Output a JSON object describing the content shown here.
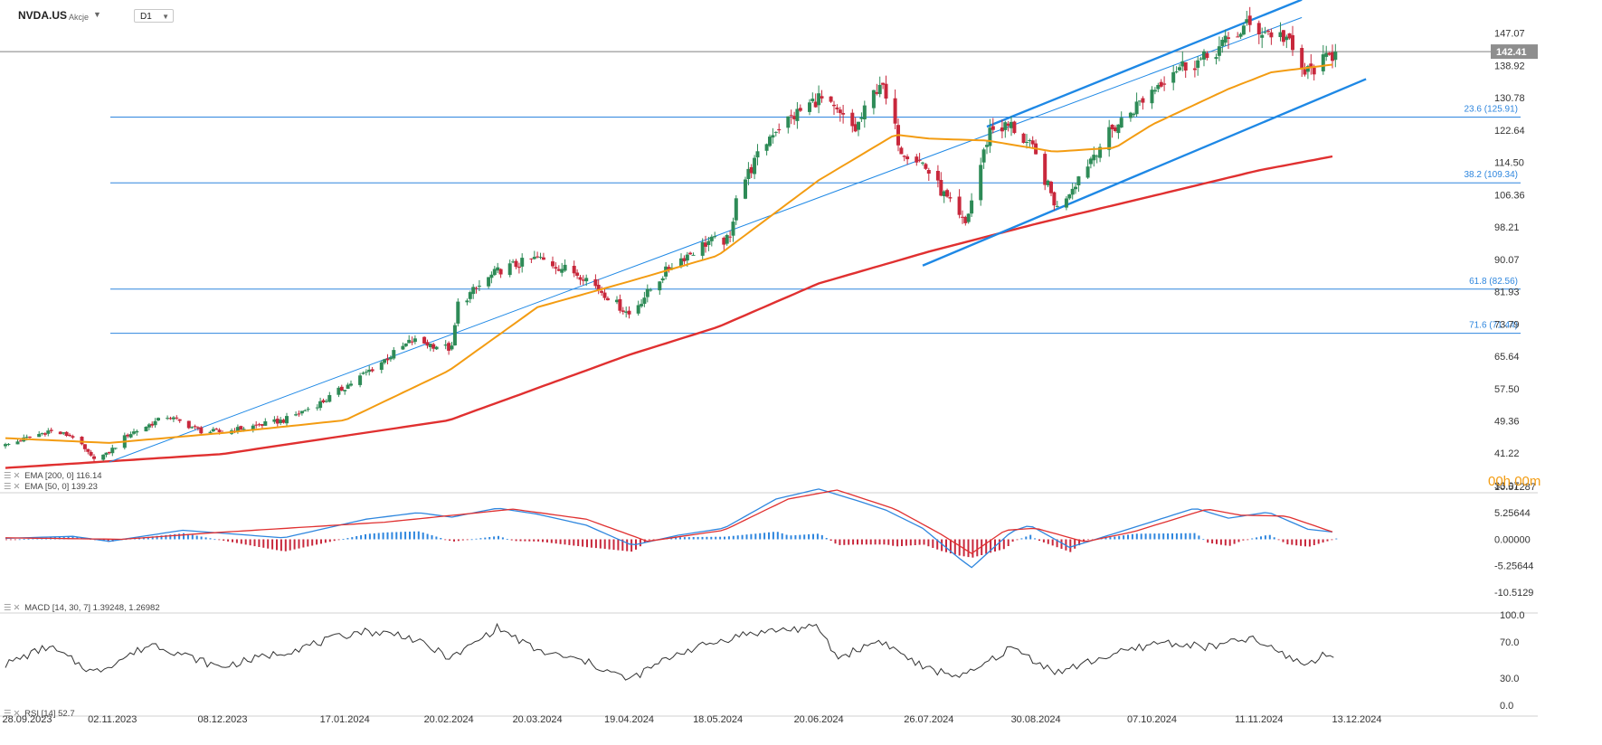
{
  "header": {
    "symbol": "NVDA.US",
    "instrument_type": "Akcje",
    "timeframe": "D1"
  },
  "timer": "00h 00m",
  "indicators": {
    "ema200": {
      "label": "EMA [200, 0]",
      "value": "116.14"
    },
    "ema50": {
      "label": "EMA [50, 0]",
      "value": "139.23"
    },
    "macd": {
      "label": "MACD [14, 30, 7]",
      "value": "1.39248,",
      "value2": "1.26982"
    },
    "rsi": {
      "label": "RSI [14]",
      "value": "52.7"
    }
  },
  "icons": [
    "settings-icon",
    "close-icon",
    "dropdown-caret-icon"
  ],
  "colors": {
    "bull": "#2e8b57",
    "bear": "#c8283c",
    "ema50": "#f39c12",
    "ema200": "#e03030",
    "trend": "#1e88e5",
    "fib": "#2e86de",
    "macd_line": "#2e86de",
    "signal_line": "#e03030",
    "rsi": "#333333"
  },
  "chart_data": {
    "type": "candlestick",
    "last_price": "142.41",
    "price_axis": [
      "147.07",
      "138.92",
      "130.78",
      "122.64",
      "114.50",
      "106.36",
      "98.21",
      "90.07",
      "81.93",
      "73.79",
      "65.64",
      "57.50",
      "49.36",
      "41.22",
      "33.07"
    ],
    "price_range": [
      33.07,
      152
    ],
    "time_axis": [
      "28.09.2023",
      "02.11.2023",
      "08.12.2023",
      "17.01.2024",
      "20.02.2024",
      "20.03.2024",
      "19.04.2024",
      "18.05.2024",
      "20.06.2024",
      "26.07.2024",
      "30.08.2024",
      "07.10.2024",
      "11.11.2024",
      "13.12.2024"
    ],
    "fib_levels": [
      {
        "label": "23.6 (125.91)",
        "value": 125.91
      },
      {
        "label": "38.2 (109.34)",
        "value": 109.34
      },
      {
        "label": "61.8 (82.56)",
        "value": 82.56
      },
      {
        "label": "71.6 (71.44)",
        "value": 71.44
      }
    ],
    "price_anchors": [
      [
        "2023-09-28",
        43.2
      ],
      [
        "2023-10-12",
        46.8
      ],
      [
        "2023-10-20",
        45.5
      ],
      [
        "2023-10-26",
        40.2
      ],
      [
        "2023-10-31",
        40.8
      ],
      [
        "2023-11-07",
        45.9
      ],
      [
        "2023-11-20",
        50.5
      ],
      [
        "2023-12-01",
        46.8
      ],
      [
        "2023-12-08",
        46.5
      ],
      [
        "2023-12-28",
        49.5
      ],
      [
        "2024-01-10",
        54.3
      ],
      [
        "2024-01-24",
        61.5
      ],
      [
        "2024-02-08",
        69.6
      ],
      [
        "2024-02-21",
        67.5
      ],
      [
        "2024-02-23",
        78.8
      ],
      [
        "2024-03-05",
        85.9
      ],
      [
        "2024-03-08",
        87.5
      ],
      [
        "2024-03-20",
        90.3
      ],
      [
        "2024-04-04",
        85.9
      ],
      [
        "2024-04-19",
        76.2
      ],
      [
        "2024-05-03",
        88.8
      ],
      [
        "2024-05-15",
        94.6
      ],
      [
        "2024-05-22",
        94.9
      ],
      [
        "2024-05-24",
        106.5
      ],
      [
        "2024-06-05",
        122.4
      ],
      [
        "2024-06-20",
        130.8
      ],
      [
        "2024-07-02",
        122.7
      ],
      [
        "2024-07-10",
        134.9
      ],
      [
        "2024-07-17",
        117.9
      ],
      [
        "2024-07-24",
        114.3
      ],
      [
        "2024-08-05",
        100.4
      ],
      [
        "2024-08-07",
        98.9
      ],
      [
        "2024-08-15",
        122.9
      ],
      [
        "2024-08-22",
        123.7
      ],
      [
        "2024-08-29",
        117.6
      ],
      [
        "2024-09-06",
        102.8
      ],
      [
        "2024-09-19",
        117.9
      ],
      [
        "2024-09-25",
        123.5
      ],
      [
        "2024-10-14",
        138.1
      ],
      [
        "2024-10-24",
        140.4
      ],
      [
        "2024-11-07",
        148.9
      ],
      [
        "2024-11-20",
        145.9
      ],
      [
        "2024-11-22",
        141.9
      ],
      [
        "2024-11-26",
        136.9
      ],
      [
        "2024-12-03",
        140.3
      ],
      [
        "2024-12-06",
        142.41
      ]
    ],
    "ema50_anchors": [
      [
        "2023-09-28",
        45.0
      ],
      [
        "2023-11-01",
        43.8
      ],
      [
        "2023-12-08",
        46.3
      ],
      [
        "2024-01-17",
        49.5
      ],
      [
        "2024-02-20",
        62.0
      ],
      [
        "2024-03-20",
        78.0
      ],
      [
        "2024-04-19",
        84.5
      ],
      [
        "2024-05-18",
        91.0
      ],
      [
        "2024-06-20",
        110.0
      ],
      [
        "2024-07-15",
        121.5
      ],
      [
        "2024-07-26",
        120.5
      ],
      [
        "2024-08-14",
        120.0
      ],
      [
        "2024-09-05",
        117.2
      ],
      [
        "2024-09-25",
        118.2
      ],
      [
        "2024-10-07",
        124.0
      ],
      [
        "2024-11-01",
        133.0
      ],
      [
        "2024-11-15",
        137.2
      ],
      [
        "2024-12-06",
        139.23
      ]
    ],
    "ema200_anchors": [
      [
        "2023-09-28",
        37.5
      ],
      [
        "2023-12-08",
        41.0
      ],
      [
        "2024-02-20",
        49.5
      ],
      [
        "2024-04-19",
        66.0
      ],
      [
        "2024-05-18",
        73.0
      ],
      [
        "2024-06-20",
        84.0
      ],
      [
        "2024-07-26",
        92.0
      ],
      [
        "2024-08-30",
        99.0
      ],
      [
        "2024-10-07",
        106.0
      ],
      [
        "2024-11-11",
        112.5
      ],
      [
        "2024-12-06",
        116.14
      ]
    ],
    "trend_lines": [
      {
        "from": [
          "2023-11-01",
          39.0
        ],
        "to": [
          "2024-11-25",
          151.0
        ]
      },
      {
        "from": [
          "2024-08-14",
          123.5
        ],
        "to": [
          "2024-11-25",
          155.5
        ]
      },
      {
        "from": [
          "2024-07-24",
          88.5
        ],
        "to": [
          "2024-12-16",
          135.5
        ]
      }
    ],
    "macd": {
      "axis": [
        "10.51287",
        "5.25644",
        "0.00000",
        "-5.25644",
        "-10.5129"
      ],
      "range": [
        -10.5129,
        10.51287
      ],
      "macd_anchors": [
        [
          "2023-09-28",
          0.2
        ],
        [
          "2023-10-20",
          0.6
        ],
        [
          "2023-11-01",
          -0.4
        ],
        [
          "2023-11-25",
          1.8
        ],
        [
          "2023-12-28",
          0.3
        ],
        [
          "2024-01-24",
          4.0
        ],
        [
          "2024-02-10",
          5.3
        ],
        [
          "2024-02-21",
          4.4
        ],
        [
          "2024-03-07",
          6.2
        ],
        [
          "2024-03-20",
          5.0
        ],
        [
          "2024-04-05",
          2.8
        ],
        [
          "2024-04-20",
          -1.2
        ],
        [
          "2024-05-05",
          0.8
        ],
        [
          "2024-05-20",
          2.2
        ],
        [
          "2024-06-06",
          8.0
        ],
        [
          "2024-06-20",
          10.0
        ],
        [
          "2024-07-02",
          7.8
        ],
        [
          "2024-07-12",
          5.8
        ],
        [
          "2024-07-24",
          2.2
        ],
        [
          "2024-08-05",
          -3.8
        ],
        [
          "2024-08-09",
          -5.6
        ],
        [
          "2024-08-22",
          1.5
        ],
        [
          "2024-08-28",
          2.8
        ],
        [
          "2024-09-10",
          -1.6
        ],
        [
          "2024-09-25",
          1.2
        ],
        [
          "2024-10-07",
          3.5
        ],
        [
          "2024-10-21",
          6.2
        ],
        [
          "2024-11-01",
          4.2
        ],
        [
          "2024-11-14",
          5.4
        ],
        [
          "2024-11-27",
          2.0
        ],
        [
          "2024-12-06",
          1.39
        ]
      ],
      "signal_anchors": [
        [
          "2023-09-28",
          0.3
        ],
        [
          "2023-11-05",
          0.0
        ],
        [
          "2023-12-05",
          1.3
        ],
        [
          "2024-01-30",
          3.4
        ],
        [
          "2024-02-25",
          5.0
        ],
        [
          "2024-03-12",
          6.0
        ],
        [
          "2024-04-05",
          4.0
        ],
        [
          "2024-04-25",
          -0.4
        ],
        [
          "2024-05-20",
          1.8
        ],
        [
          "2024-06-10",
          8.0
        ],
        [
          "2024-06-26",
          9.8
        ],
        [
          "2024-07-15",
          6.0
        ],
        [
          "2024-07-30",
          1.0
        ],
        [
          "2024-08-09",
          -2.8
        ],
        [
          "2024-08-20",
          1.8
        ],
        [
          "2024-08-30",
          2.2
        ],
        [
          "2024-09-15",
          -0.5
        ],
        [
          "2024-10-01",
          1.5
        ],
        [
          "2024-10-25",
          6.0
        ],
        [
          "2024-11-05",
          4.8
        ],
        [
          "2024-11-20",
          4.6
        ],
        [
          "2024-12-06",
          1.27
        ]
      ]
    },
    "rsi": {
      "axis": [
        "100.0",
        "70.0",
        "30.0",
        "0.0"
      ],
      "range": [
        0,
        100
      ],
      "anchors": [
        [
          "2023-09-28",
          45
        ],
        [
          "2023-10-12",
          65
        ],
        [
          "2023-10-27",
          36
        ],
        [
          "2023-11-15",
          68
        ],
        [
          "2023-12-07",
          42
        ],
        [
          "2024-01-02",
          63
        ],
        [
          "2024-01-22",
          82
        ],
        [
          "2024-02-05",
          78
        ],
        [
          "2024-02-21",
          52
        ],
        [
          "2024-03-07",
          86
        ],
        [
          "2024-03-20",
          60
        ],
        [
          "2024-04-05",
          48
        ],
        [
          "2024-04-19",
          28
        ],
        [
          "2024-05-05",
          58
        ],
        [
          "2024-05-26",
          78
        ],
        [
          "2024-06-06",
          83
        ],
        [
          "2024-06-20",
          86
        ],
        [
          "2024-06-26",
          52
        ],
        [
          "2024-07-10",
          72
        ],
        [
          "2024-07-25",
          40
        ],
        [
          "2024-08-07",
          32
        ],
        [
          "2024-08-22",
          64
        ],
        [
          "2024-09-06",
          36
        ],
        [
          "2024-09-20",
          52
        ],
        [
          "2024-10-10",
          70
        ],
        [
          "2024-10-26",
          64
        ],
        [
          "2024-11-08",
          74
        ],
        [
          "2024-11-26",
          45
        ],
        [
          "2024-12-03",
          56
        ],
        [
          "2024-12-06",
          52.7
        ]
      ]
    }
  }
}
